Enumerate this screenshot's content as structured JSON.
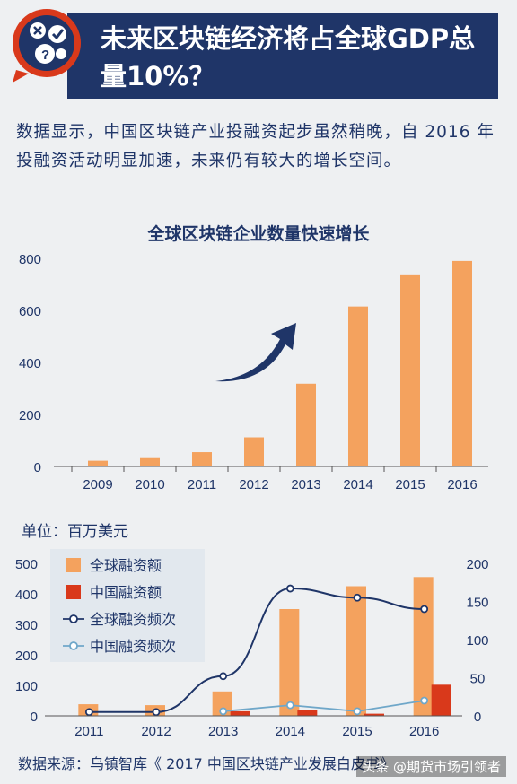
{
  "header": {
    "title": "未来区块链经济将占全球GDP总量10%？"
  },
  "intro": "数据显示，中国区块链产业投融资起步虽然稍晚，自 2016 年投融资活动明显加速，未来仍有较大的增长空间。",
  "colors": {
    "navy": "#1f3568",
    "orange": "#f4a25e",
    "red": "#d9391b",
    "lightblue": "#6fa7c9"
  },
  "chart_data": [
    {
      "type": "bar",
      "title": "全球区块链企业数量快速增长",
      "categories": [
        "2009",
        "2010",
        "2011",
        "2012",
        "2013",
        "2014",
        "2015",
        "2016"
      ],
      "values": [
        22,
        32,
        55,
        112,
        318,
        615,
        735,
        790
      ],
      "ylim": [
        0,
        800
      ],
      "yticks": [
        "0",
        "200",
        "400",
        "600",
        "800"
      ],
      "grid": false
    },
    {
      "type": "bar",
      "unit_label": "单位：百万美元",
      "categories": [
        "2011",
        "2012",
        "2013",
        "2014",
        "2015",
        "2016"
      ],
      "left_ylim": [
        0,
        500
      ],
      "left_yticks": [
        "0",
        "100",
        "200",
        "300",
        "400",
        "500"
      ],
      "right_ylim": [
        0,
        200
      ],
      "right_yticks": [
        "0",
        "50",
        "100",
        "150",
        "200"
      ],
      "legend_position": "top-left",
      "series": [
        {
          "name": "全球融资额",
          "type": "bar",
          "axis": "left",
          "values": [
            38,
            35,
            80,
            350,
            425,
            455
          ]
        },
        {
          "name": "中国融资额",
          "type": "bar",
          "axis": "left",
          "values": [
            0,
            0,
            15,
            20,
            7,
            102
          ]
        },
        {
          "name": "全球融资频次",
          "type": "line",
          "axis": "right",
          "values": [
            5,
            5,
            52,
            167,
            155,
            140
          ]
        },
        {
          "name": "中国融资频次",
          "type": "line",
          "axis": "right",
          "values": [
            null,
            null,
            6,
            14,
            6,
            20
          ]
        }
      ]
    }
  ],
  "source": "数据来源：乌镇智库《 2017 中国区块链产业发展白皮书》",
  "watermark": "头条 @期货市场引领者"
}
